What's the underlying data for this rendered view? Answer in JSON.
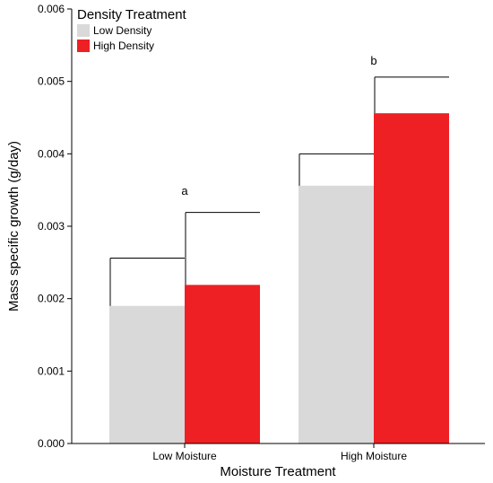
{
  "chart_data": {
    "type": "bar",
    "title": "",
    "xlabel": "Moisture Treatment",
    "ylabel": "Mass specific growth (g/day)",
    "ylim": [
      0,
      0.006
    ],
    "yticks": [
      "0.000",
      "0.001",
      "0.002",
      "0.003",
      "0.004",
      "0.005",
      "0.006"
    ],
    "categories": [
      "Low Moisture",
      "High Moisture"
    ],
    "series": [
      {
        "name": "Low Density",
        "color": "#d9d9d9",
        "values": [
          0.0019,
          0.00356
        ],
        "error_upper": [
          0.00066,
          0.00044
        ]
      },
      {
        "name": "High Density",
        "color": "#ee2024",
        "values": [
          0.00219,
          0.00456
        ],
        "error_upper": [
          0.001,
          0.0005
        ]
      }
    ],
    "annotations": [
      "a",
      "b"
    ],
    "legend": {
      "title": "Density Treatment",
      "placement": "top-left"
    },
    "grid": false
  }
}
